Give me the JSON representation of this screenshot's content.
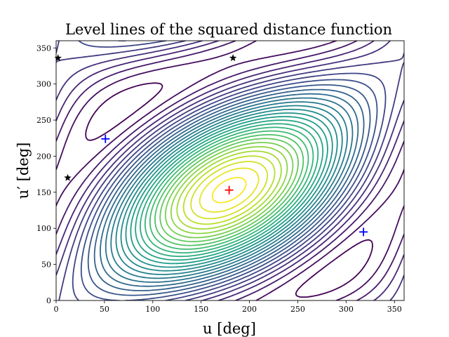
{
  "chart_data": {
    "type": "contour",
    "title": "Level lines of the squared distance function",
    "xlabel": "u [deg]",
    "ylabel": "u′ [deg]",
    "xlim": [
      0,
      360
    ],
    "ylim": [
      0,
      360
    ],
    "xticks": [
      "0",
      "50",
      "100",
      "150",
      "200",
      "250",
      "300",
      "350"
    ],
    "yticks": [
      "0",
      "50",
      "100",
      "150",
      "200",
      "250",
      "300",
      "350"
    ],
    "colormap": "viridis",
    "grid": false,
    "markers": [
      {
        "kind": "plus",
        "color": "#ff0000",
        "x": 179,
        "y": 153
      },
      {
        "kind": "plus",
        "color": "#0000ff",
        "x": 51,
        "y": 224
      },
      {
        "kind": "plus",
        "color": "#0000ff",
        "x": 318,
        "y": 95
      },
      {
        "kind": "star",
        "color": "#000000",
        "x": 2,
        "y": 336
      },
      {
        "kind": "star",
        "color": "#000000",
        "x": 183,
        "y": 336
      },
      {
        "kind": "star",
        "color": "#000000",
        "x": 12,
        "y": 170
      }
    ]
  }
}
